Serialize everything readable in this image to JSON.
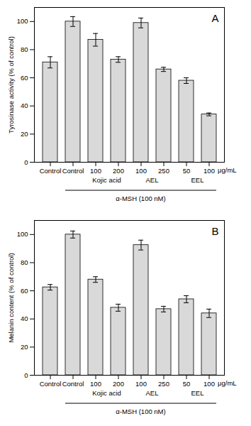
{
  "chart_data": [
    {
      "type": "bar",
      "title": "A",
      "y_label": "Tyrosinase activity (% of control)",
      "categories": [
        "Control",
        "Control",
        "100",
        "200",
        "100",
        "250",
        "50",
        "100"
      ],
      "values": [
        71,
        100,
        87,
        73,
        99,
        66,
        58,
        34
      ],
      "errors": [
        4,
        3.5,
        4.5,
        2,
        3.5,
        1.5,
        2,
        1
      ],
      "group_labels": [
        null,
        null,
        "Kojic acid",
        "Kojic acid",
        "AEL",
        "AEL",
        "EEL",
        "EEL"
      ],
      "treatment_labels": [
        null,
        "α-MSH (100 nM)",
        "α-MSH (100 nM)",
        "α-MSH (100 nM)",
        "α-MSH (100 nM)",
        "α-MSH (100 nM)",
        "α-MSH (100 nM)",
        "α-MSH (100 nM)"
      ],
      "unit_label": "μg/mL",
      "color": "#d9d9d9",
      "ylim": [
        0,
        110
      ],
      "yticks": [
        0,
        20,
        40,
        60,
        80,
        100
      ]
    },
    {
      "type": "bar",
      "title": "B",
      "y_label": "Melanin content (% of control)",
      "categories": [
        "Control",
        "Control",
        "100",
        "200",
        "100",
        "250",
        "50",
        "100"
      ],
      "values": [
        62.5,
        100,
        68,
        48,
        92.5,
        47,
        54,
        44
      ],
      "errors": [
        2,
        2.5,
        2,
        2.5,
        3.5,
        2,
        2.5,
        3
      ],
      "group_labels": [
        null,
        null,
        "Kojic acid",
        "Kojic acid",
        "AEL",
        "AEL",
        "EEL",
        "EEL"
      ],
      "treatment_labels": [
        null,
        "α-MSH (100 nM)",
        "α-MSH (100 nM)",
        "α-MSH (100 nM)",
        "α-MSH (100 nM)",
        "α-MSH (100 nM)",
        "α-MSH (100 nM)",
        "α-MSH (100 nM)"
      ],
      "unit_label": "μg/mL",
      "color": "#d9d9d9",
      "ylim": [
        0,
        110
      ],
      "yticks": [
        0,
        20,
        40,
        60,
        80,
        100
      ]
    }
  ]
}
